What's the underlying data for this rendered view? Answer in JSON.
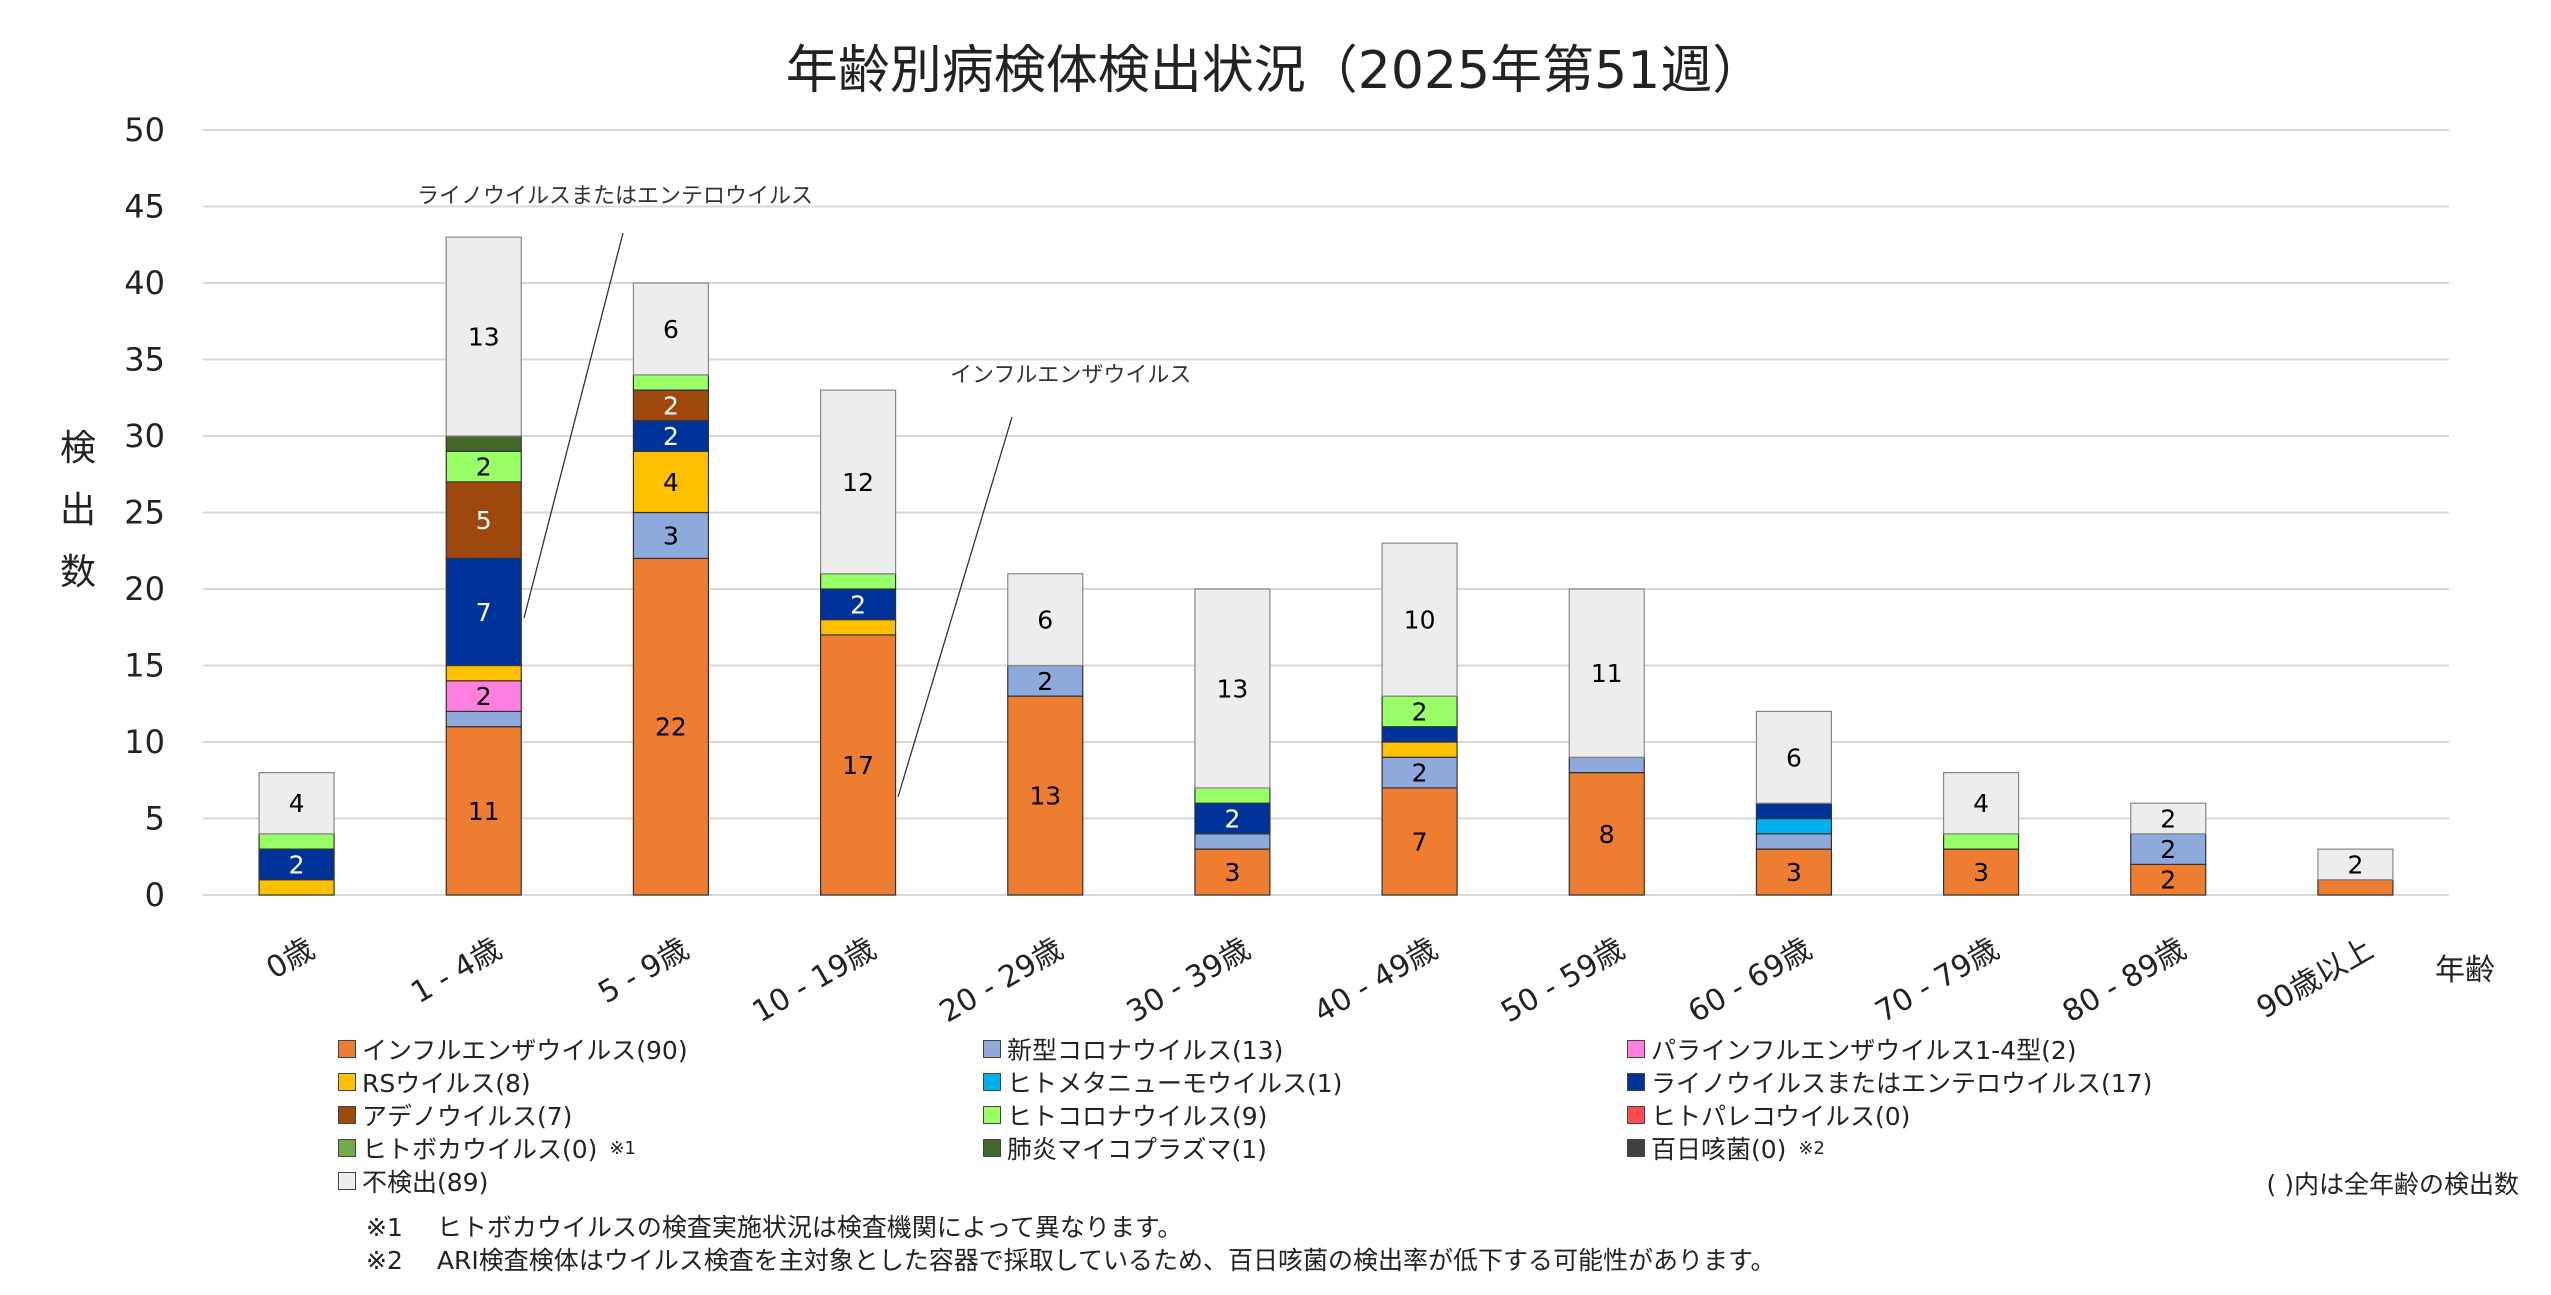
{
  "chart_data": {
    "type": "bar",
    "stacked": true,
    "title": "年齢別病検体検出状況（2025年第51週）",
    "xlabel": "年齢",
    "ylabel": "検出数",
    "ylim": [
      0,
      50
    ],
    "yticks": [
      0,
      5,
      10,
      15,
      20,
      25,
      30,
      35,
      40,
      45,
      50
    ],
    "grid": true,
    "legend_position": "bottom",
    "categories": [
      "0歳",
      "1 - 4歳",
      "5 - 9歳",
      "10 - 19歳",
      "20 - 29歳",
      "30 - 39歳",
      "40 - 49歳",
      "50 - 59歳",
      "60 - 69歳",
      "70 - 79歳",
      "80 - 89歳",
      "90歳以上"
    ],
    "series": [
      {
        "name": "インフルエンザウイルス(90)",
        "color": "#ED7D31",
        "label_color": "#000000",
        "values": [
          0,
          11,
          22,
          17,
          13,
          3,
          7,
          8,
          3,
          3,
          2,
          1
        ]
      },
      {
        "name": "新型コロナウイルス(13)",
        "color": "#8EA9DB",
        "label_color": "#000000",
        "values": [
          0,
          1,
          3,
          0,
          2,
          1,
          2,
          1,
          1,
          0,
          2,
          0
        ]
      },
      {
        "name": "パラインフルエンザウイルス1-4型(2)",
        "color": "#FF7FDF",
        "label_color": "#000000",
        "values": [
          0,
          2,
          0,
          0,
          0,
          0,
          0,
          0,
          0,
          0,
          0,
          0
        ]
      },
      {
        "name": "RSウイルス(8)",
        "color": "#FFC000",
        "label_color": "#000000",
        "values": [
          1,
          1,
          4,
          1,
          0,
          0,
          1,
          0,
          0,
          0,
          0,
          0
        ]
      },
      {
        "name": "ヒトメタニューモウイルス(1)",
        "color": "#00B0F0",
        "label_color": "#000000",
        "values": [
          0,
          0,
          0,
          0,
          0,
          0,
          0,
          0,
          1,
          0,
          0,
          0
        ]
      },
      {
        "name": "ライノウイルスまたはエンテロウイルス(17)",
        "color": "#003399",
        "label_color": "#FFFFFF",
        "values": [
          2,
          7,
          2,
          2,
          0,
          2,
          1,
          0,
          1,
          0,
          0,
          0
        ]
      },
      {
        "name": "アデノウイルス(7)",
        "color": "#9E480E",
        "label_color": "#FFFFFF",
        "values": [
          0,
          5,
          2,
          0,
          0,
          0,
          0,
          0,
          0,
          0,
          0,
          0
        ]
      },
      {
        "name": "ヒトコロナウイルス(9)",
        "color": "#99FF66",
        "label_color": "#000000",
        "values": [
          1,
          2,
          1,
          1,
          0,
          1,
          2,
          0,
          0,
          1,
          0,
          0
        ]
      },
      {
        "name": "ヒトパレコウイルス(0)",
        "color": "#FF4B4B",
        "label_color": "#000000",
        "values": [
          0,
          0,
          0,
          0,
          0,
          0,
          0,
          0,
          0,
          0,
          0,
          0
        ]
      },
      {
        "name": "ヒトボカウイルス(0)",
        "color": "#70AD47",
        "label_color": "#000000",
        "note": "※1",
        "values": [
          0,
          0,
          0,
          0,
          0,
          0,
          0,
          0,
          0,
          0,
          0,
          0
        ]
      },
      {
        "name": "肺炎マイコプラズマ(1)",
        "color": "#43682B",
        "label_color": "#FFFFFF",
        "values": [
          0,
          1,
          0,
          0,
          0,
          0,
          0,
          0,
          0,
          0,
          0,
          0
        ]
      },
      {
        "name": "百日咳菌(0)",
        "color": "#404040",
        "label_color": "#FFFFFF",
        "note": "※2",
        "values": [
          0,
          0,
          0,
          0,
          0,
          0,
          0,
          0,
          0,
          0,
          0,
          0
        ]
      },
      {
        "name": "不検出(89)",
        "color": "#EDEDED",
        "label_color": "#000000",
        "values": [
          4,
          13,
          6,
          12,
          6,
          13,
          10,
          11,
          6,
          4,
          2,
          2
        ]
      }
    ],
    "annotations": [
      {
        "text": "ライノウイルスまたはエンテロウイルス",
        "category": "1 - 4歳",
        "series": "ライノウイルスまたはエンテロウイルス(17)"
      },
      {
        "text": "インフルエンザウイルス",
        "category": "10 - 19歳",
        "series": "インフルエンザウイルス(90)"
      }
    ],
    "legend_note": "( )内は全年齢の検出数"
  },
  "footnotes": [
    {
      "mark": "※1",
      "text": "ヒトボカウイルスの検査実施状況は検査機関によって異なります。"
    },
    {
      "mark": "※2",
      "text": "ARI検査検体はウイルス検査を主対象とした容器で採取しているため、百日咳菌の検出率が低下する可能性があります。"
    }
  ]
}
